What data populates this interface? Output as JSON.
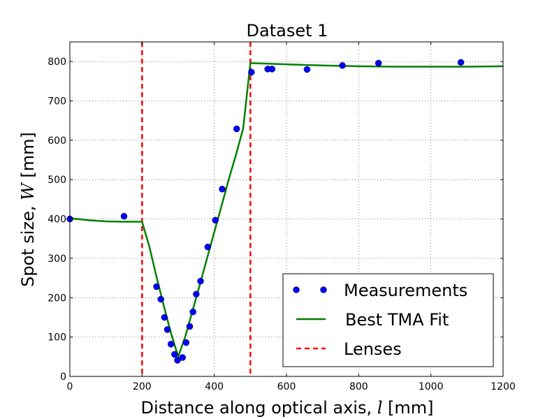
{
  "chart_data": {
    "type": "scatter",
    "title": "Dataset 1",
    "xlabel": {
      "prefix": "Distance along optical axis, ",
      "symbol": "l",
      "suffix": " [mm]"
    },
    "ylabel": {
      "prefix": "Spot size, ",
      "symbol": "W",
      "suffix": " [mm]"
    },
    "xlim": [
      0,
      1200
    ],
    "ylim": [
      0,
      850
    ],
    "xticks": [
      0,
      200,
      400,
      600,
      800,
      1000,
      1200
    ],
    "yticks": [
      0,
      100,
      200,
      300,
      400,
      500,
      600,
      700,
      800
    ],
    "grid": true,
    "legend_position": "lower-right",
    "series": [
      {
        "name": "Measurements",
        "kind": "markers",
        "color": "#0000ff",
        "x": [
          0,
          150,
          240,
          252,
          262,
          270,
          280,
          290,
          298,
          312,
          322,
          332,
          341,
          350,
          362,
          382,
          403,
          422,
          462,
          503,
          548,
          560,
          657,
          755,
          855,
          1083
        ],
        "y": [
          400,
          407,
          228,
          196,
          150,
          119,
          82,
          56,
          41,
          48,
          86,
          127,
          164,
          209,
          242,
          329,
          397,
          476,
          629,
          773,
          781,
          781,
          780,
          790,
          796,
          798
        ]
      },
      {
        "name": "Best TMA Fit",
        "kind": "line",
        "color": "#008000",
        "x": [
          0,
          50,
          100,
          150,
          200,
          220,
          240,
          260,
          280,
          300,
          320,
          340,
          360,
          380,
          400,
          420,
          440,
          460,
          480,
          500,
          600,
          700,
          800,
          900,
          1000,
          1100,
          1200
        ],
        "y": [
          402,
          397,
          394,
          393,
          393,
          330,
          253,
          180,
          110,
          50,
          102,
          168,
          233,
          300,
          367,
          433,
          500,
          563,
          630,
          796,
          793,
          790,
          788,
          787,
          787,
          787,
          788
        ]
      },
      {
        "name": "Lenses",
        "kind": "vlines",
        "color": "#ff0000",
        "x": [
          200,
          500
        ]
      }
    ]
  }
}
